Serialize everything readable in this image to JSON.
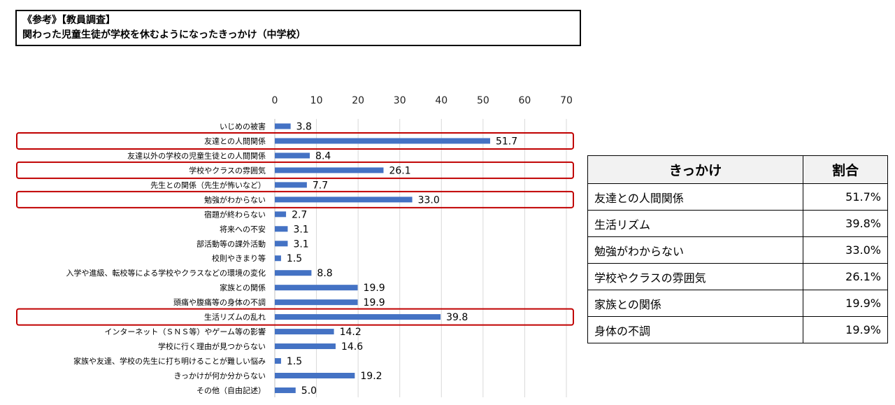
{
  "header": {
    "line1": "《参考》【教員調査】",
    "line2": "関わった児童生徒が学校を休むようになったきっかけ（中学校）"
  },
  "colors": {
    "bar": "#4472c4",
    "highlight": "#c00000",
    "grid": "#d9d9d9"
  },
  "chart_data": {
    "type": "bar",
    "orientation": "horizontal",
    "xlim": [
      0,
      70
    ],
    "ticks": [
      0,
      10,
      20,
      30,
      40,
      50,
      60,
      70
    ],
    "axis_position": "top",
    "grid": true,
    "categories": [
      "いじめの被害",
      "友達との人間関係",
      "友達以外の学校の児童生徒との人間関係",
      "学校やクラスの雰囲気",
      "先生との関係（先生が怖いなど）",
      "勉強がわからない",
      "宿題が終わらない",
      "将来への不安",
      "部活動等の課外活動",
      "校則やきまり等",
      "入学や進級、転校等による学校やクラスなどの環境の変化",
      "家族との関係",
      "頭痛や腹痛等の身体の不調",
      "生活リズムの乱れ",
      "インターネット（ＳＮＳ等）やゲーム等の影響",
      "学校に行く理由が見つからない",
      "家族や友達、学校の先生に打ち明けることが難しい悩み",
      "きっかけが何か分からない",
      "その他（自由記述）"
    ],
    "values": [
      3.8,
      51.7,
      8.4,
      26.1,
      7.7,
      33.0,
      2.7,
      3.1,
      3.1,
      1.5,
      8.8,
      19.9,
      19.9,
      39.8,
      14.2,
      14.6,
      1.5,
      19.2,
      5.0
    ],
    "value_labels": [
      "3.8",
      "51.7",
      "8.4",
      "26.1",
      "7.7",
      "33.0",
      "2.7",
      "3.1",
      "3.1",
      "1.5",
      "8.8",
      "19.9",
      "19.9",
      "39.8",
      "14.2",
      "14.6",
      "1.5",
      "19.2",
      "5.0"
    ],
    "highlighted": [
      1,
      3,
      5,
      13
    ]
  },
  "summary_table": {
    "headers": [
      "きっかけ",
      "割合"
    ],
    "rows": [
      {
        "label": "友達との人間関係",
        "value": "51.7%"
      },
      {
        "label": "生活リズム",
        "value": "39.8%"
      },
      {
        "label": "勉強がわからない",
        "value": "33.0%"
      },
      {
        "label": "学校やクラスの雰囲気",
        "value": "26.1%"
      },
      {
        "label": "家族との関係",
        "value": "19.9%"
      },
      {
        "label": "身体の不調",
        "value": "19.9%"
      }
    ]
  }
}
